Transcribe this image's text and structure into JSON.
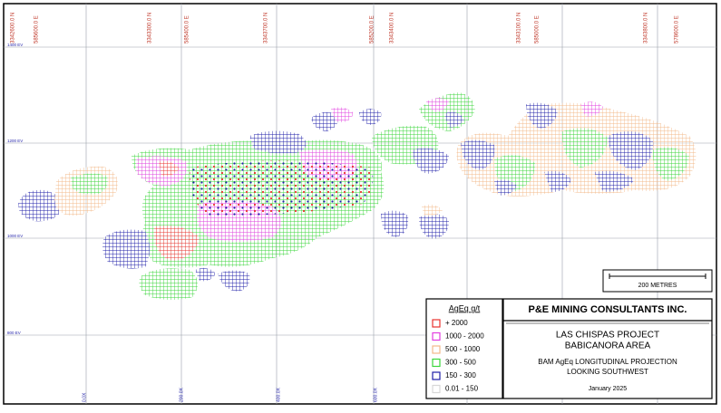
{
  "map": {
    "coordinate_labels": [
      {
        "text": "3342600.0 N",
        "color": "#c0392b"
      },
      {
        "text": "585600.0 E",
        "color": "#c0392b"
      },
      {
        "text": "3343300.0 N",
        "color": "#c0392b"
      },
      {
        "text": "585400.0 E",
        "color": "#c0392b"
      },
      {
        "text": "3343700.0 N",
        "color": "#c0392b"
      },
      {
        "text": "585200.0 E",
        "color": "#c0392b"
      },
      {
        "text": "3343400.0 N",
        "color": "#c0392b"
      },
      {
        "text": "3343100.0 N",
        "color": "#c0392b"
      },
      {
        "text": "585000.0 E",
        "color": "#c0392b"
      },
      {
        "text": "3343800.0 N",
        "color": "#c0392b"
      },
      {
        "text": "578600.0 E",
        "color": "#c0392b"
      }
    ],
    "elevation_labels": [
      "1400 EV",
      "1200 EV",
      "1000 EV",
      "800 EV"
    ],
    "section_labels": [
      "0.0X",
      "200.0X",
      "400.0X",
      "600.0X"
    ],
    "scale_bar": "200 METRES",
    "legend": {
      "title": "AgEq g/t",
      "items": [
        {
          "label": "+ 2000",
          "color": "#e8322e"
        },
        {
          "label": "1000 - 2000",
          "color": "#e23de0"
        },
        {
          "label": "500 - 1000",
          "color": "#f2b98a"
        },
        {
          "label": "300 - 500",
          "color": "#3ad63a"
        },
        {
          "label": "150 - 300",
          "color": "#1f1fa8"
        },
        {
          "label": "0.01 - 150",
          "color": "#d8d8d8"
        }
      ]
    },
    "title_block": {
      "company": "P&E MINING CONSULTANTS INC.",
      "project": "LAS CHISPAS PROJECT",
      "area": "BABICANORA AREA",
      "projection": "BAM AgEq LONGITUDINAL PROJECTION",
      "view": "LOOKING SOUTHWEST",
      "date": "January 2025"
    }
  }
}
